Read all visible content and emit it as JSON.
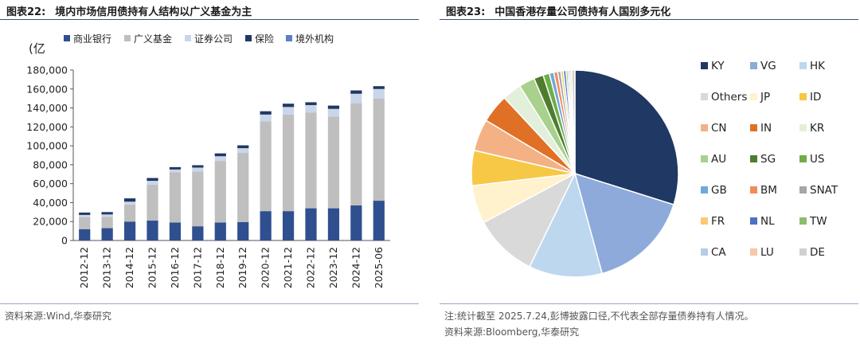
{
  "left": {
    "figure_no": "图表22:",
    "title": "境内市场信用债持有人结构以广义基金为主",
    "source": "资料来源:Wind,华泰研究"
  },
  "right": {
    "figure_no": "图表23:",
    "title": "中国香港存量公司债持有人国别多元化",
    "note": "注:统计截至 2025.7.24,彭博披露口径,不代表全部存量债券持有人情况。",
    "source": "资料来源:Bloomberg,华泰研究"
  },
  "chart_data": [
    {
      "type": "bar",
      "stacked": true,
      "ylabel": "(亿",
      "ylim": [
        0,
        180000
      ],
      "yticks": [
        0,
        20000,
        40000,
        60000,
        80000,
        100000,
        120000,
        140000,
        160000,
        180000
      ],
      "ytick_labels": [
        "0",
        "20,000",
        "40,000",
        "60,000",
        "80,000",
        "100,000",
        "120,000",
        "140,000",
        "160,000",
        "180,000"
      ],
      "grid": false,
      "legend": "top",
      "categories": [
        "2012-12",
        "2013-12",
        "2014-12",
        "2015-12",
        "2016-12",
        "2017-12",
        "2018-12",
        "2019-12",
        "2020-12",
        "2021-12",
        "2022-12",
        "2023-12",
        "2024-12",
        "2025-06"
      ],
      "series": [
        {
          "name": "商业银行",
          "color": "#2f4f8f",
          "values": [
            12000,
            13000,
            20000,
            21000,
            19000,
            15000,
            19000,
            19500,
            31000,
            31000,
            34000,
            34000,
            37000,
            42000
          ]
        },
        {
          "name": "广义基金",
          "color": "#bfbfbf",
          "values": [
            12500,
            12000,
            18000,
            38000,
            53000,
            58000,
            65000,
            73000,
            95000,
            102000,
            101000,
            97000,
            108000,
            108000
          ]
        },
        {
          "name": "证券公司",
          "color": "#c9d6ea",
          "values": [
            2500,
            2500,
            3000,
            4000,
            3000,
            4000,
            5000,
            5000,
            7000,
            8000,
            8000,
            8000,
            10000,
            10000
          ]
        },
        {
          "name": "保险",
          "color": "#1f3864",
          "values": [
            2500,
            2500,
            3500,
            3000,
            2500,
            2500,
            3000,
            3000,
            3500,
            3500,
            3000,
            3500,
            3500,
            3000
          ]
        },
        {
          "name": "境外机构",
          "color": "#5b7fc0",
          "values": [
            0,
            0,
            0,
            0,
            0,
            0,
            0,
            0,
            0,
            0,
            0,
            0,
            0,
            0
          ]
        }
      ]
    },
    {
      "type": "pie",
      "legend": "right",
      "slices": [
        {
          "label": "KY",
          "color": "#1f3864",
          "value": 30.0
        },
        {
          "label": "VG",
          "color": "#8eaadb",
          "value": 16.0
        },
        {
          "label": "HK",
          "color": "#bdd7ee",
          "value": 11.5
        },
        {
          "label": "Others",
          "color": "#d9d9d9",
          "value": 10.0
        },
        {
          "label": "JP",
          "color": "#fff2cc",
          "value": 6.0
        },
        {
          "label": "ID",
          "color": "#f7c845",
          "value": 5.5
        },
        {
          "label": "CN",
          "color": "#f4b183",
          "value": 5.0
        },
        {
          "label": "IN",
          "color": "#e07026",
          "value": 4.5
        },
        {
          "label": "KR",
          "color": "#e2efda",
          "value": 3.0
        },
        {
          "label": "AU",
          "color": "#a9d18e",
          "value": 2.5
        },
        {
          "label": "SG",
          "color": "#4f7d2e",
          "value": 1.5
        },
        {
          "label": "US",
          "color": "#70ad47",
          "value": 1.0
        },
        {
          "label": "GB",
          "color": "#6fa8dc",
          "value": 0.7
        },
        {
          "label": "BM",
          "color": "#f08c5a",
          "value": 0.6
        },
        {
          "label": "SNAT",
          "color": "#a6a6a6",
          "value": 0.5
        },
        {
          "label": "FR",
          "color": "#ffc870",
          "value": 0.4
        },
        {
          "label": "NL",
          "color": "#4a72c4",
          "value": 0.4
        },
        {
          "label": "TW",
          "color": "#8fbc6a",
          "value": 0.3
        },
        {
          "label": "CA",
          "color": "#b4cde8",
          "value": 0.3
        },
        {
          "label": "LU",
          "color": "#f8c6a8",
          "value": 0.3
        },
        {
          "label": "DE",
          "color": "#d0d0d0",
          "value": 0.5
        }
      ]
    }
  ]
}
